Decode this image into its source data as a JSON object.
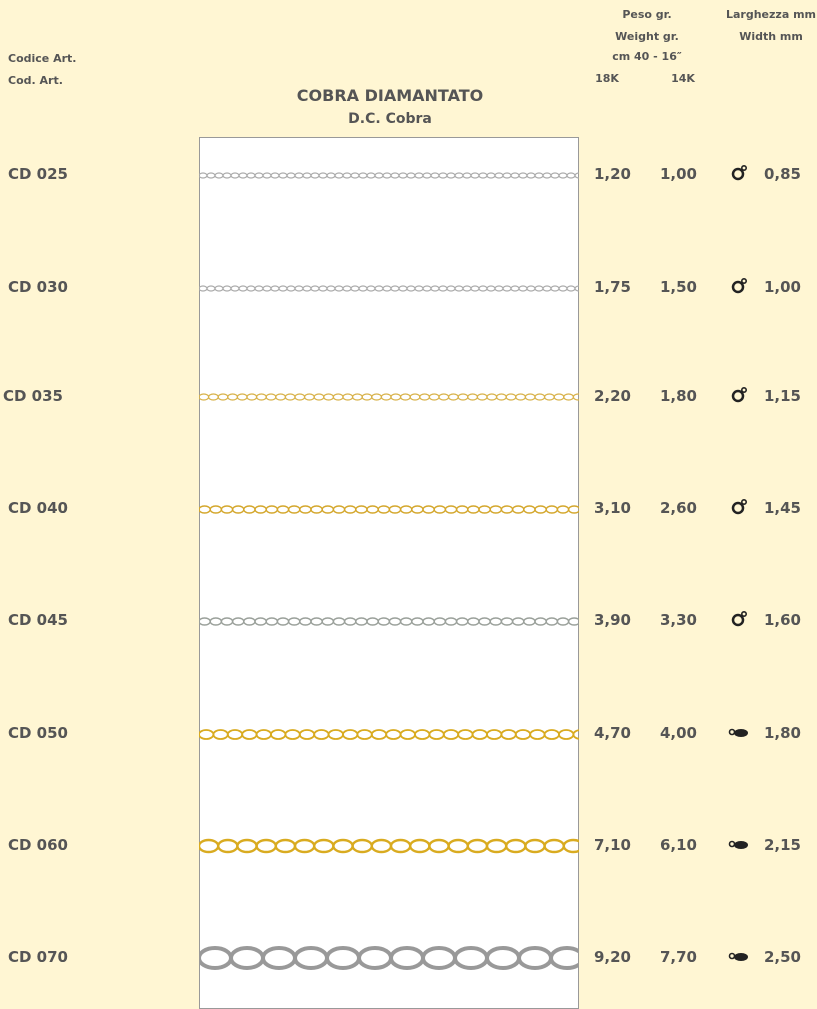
{
  "header": {
    "code_labels": [
      "Codice Art.",
      "Cod. Art."
    ],
    "title": "COBRA DIAMANTATO",
    "subtitle": "D.C. Cobra",
    "weight_header": [
      "Peso gr.",
      "Weight gr.",
      "cm 40 - 16″"
    ],
    "karats": [
      "18K",
      "14K"
    ],
    "width_header": [
      "Larghezza mm",
      "Width mm"
    ]
  },
  "rows": [
    [
      "CD 025",
      "1,20",
      "1,00",
      "0,85"
    ],
    [
      "CD 030",
      "1,75",
      "1,50",
      "1,00"
    ],
    [
      "CD 035",
      "2,20",
      "1,80",
      "1,15"
    ],
    [
      "CD 040",
      "3,10",
      "2,60",
      "1,45"
    ],
    [
      "CD 045",
      "3,90",
      "3,30",
      "1,60"
    ],
    [
      "CD 050",
      "4,70",
      "4,00",
      "1,80"
    ],
    [
      "CD 060",
      "7,10",
      "6,10",
      "2,15"
    ],
    [
      "CD 070",
      "9,20",
      "7,70",
      "2,50"
    ]
  ]
}
